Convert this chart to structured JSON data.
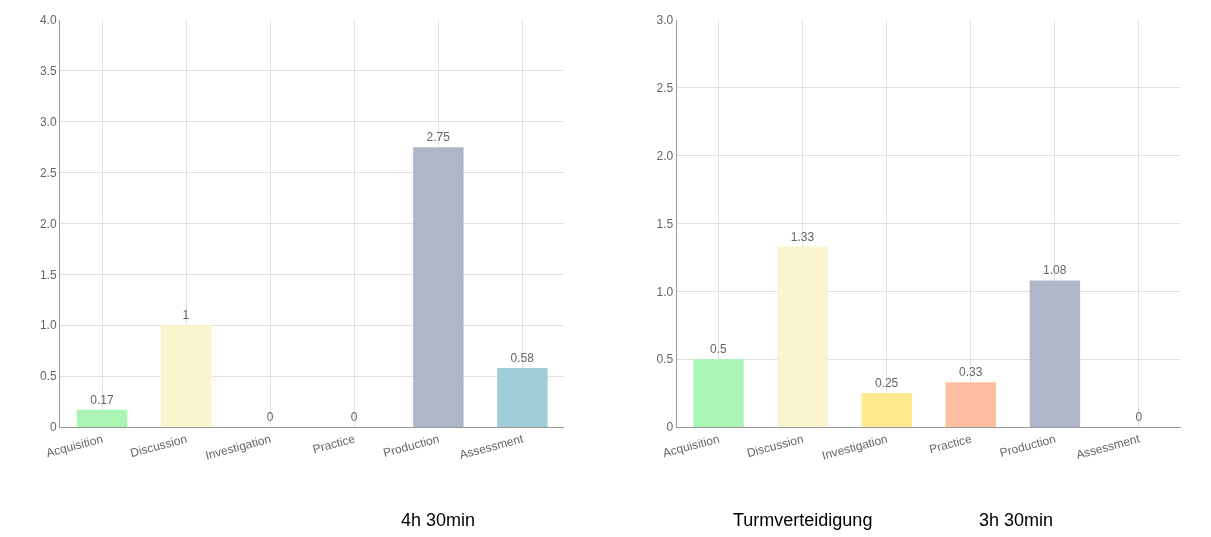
{
  "chart_data": [
    {
      "type": "bar",
      "categories": [
        "Acquisition",
        "Discussion",
        "Investigation",
        "Practice",
        "Production",
        "Assessment"
      ],
      "values": [
        0.17,
        1,
        0,
        0,
        2.75,
        0.58
      ],
      "colors": [
        "#abf5b4",
        "#faf5cc",
        "#fde98e",
        "#fdbf9f",
        "#aeb6c7",
        "#a0ccd8"
      ],
      "ylim": [
        0,
        4
      ],
      "yticks": [
        0,
        0.5,
        {
          "value": 1,
          "label": "1.0"
        },
        1.5,
        {
          "value": 2,
          "label": "2.0"
        },
        2.5,
        {
          "value": 3,
          "label": "3.0"
        },
        3.5,
        {
          "value": 4,
          "label": "4.0"
        }
      ],
      "grid": true,
      "data_labels": true,
      "annotations": [
        "4h 30min"
      ]
    },
    {
      "type": "bar",
      "categories": [
        "Acquisition",
        "Discussion",
        "Investigation",
        "Practice",
        "Production",
        "Assessment"
      ],
      "values": [
        0.5,
        1.33,
        0.25,
        0.33,
        1.08,
        0
      ],
      "colors": [
        "#abf5b4",
        "#faf5cc",
        "#fde98e",
        "#fdbf9f",
        "#aeb6c7",
        "#a0ccd8"
      ],
      "ylim": [
        0,
        3
      ],
      "yticks": [
        0,
        0.5,
        {
          "value": 1,
          "label": "1.0"
        },
        1.5,
        {
          "value": 2,
          "label": "2.0"
        },
        2.5,
        {
          "value": 3,
          "label": "3.0"
        }
      ],
      "grid": true,
      "data_labels": true,
      "annotations": [
        "Turmverteidigung",
        "3h 30min"
      ]
    }
  ]
}
